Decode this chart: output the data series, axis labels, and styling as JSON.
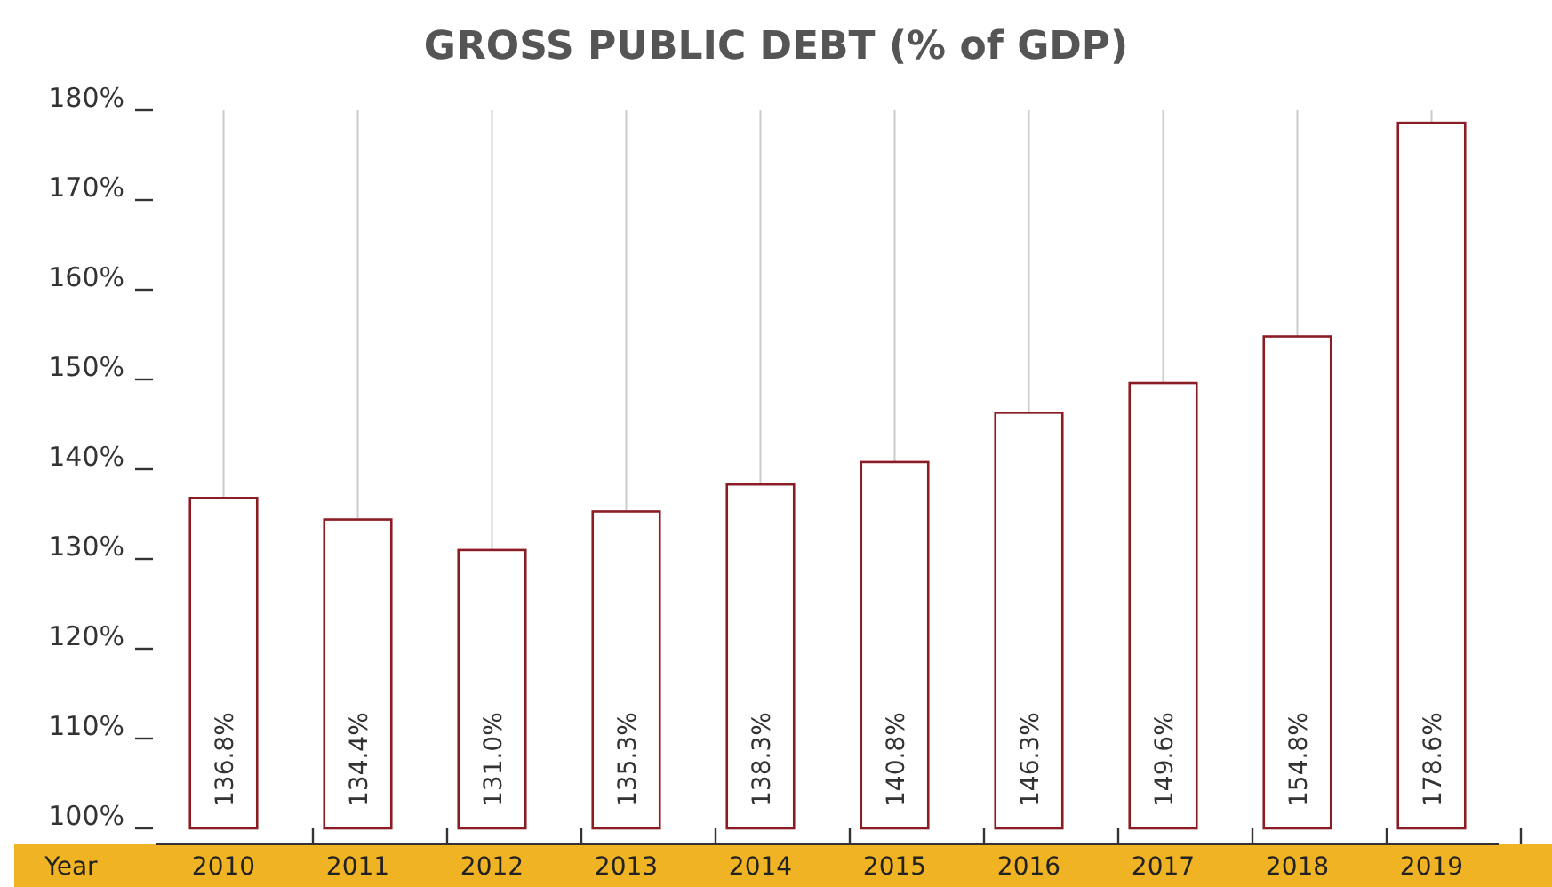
{
  "chart_data": {
    "type": "bar",
    "title": "GROSS PUBLIC DEBT (% of GDP)",
    "xlabel": "Year",
    "categories": [
      "2010",
      "2011",
      "2012",
      "2013",
      "2014",
      "2015",
      "2016",
      "2017",
      "2018",
      "2019"
    ],
    "values": [
      136.8,
      134.4,
      131.0,
      135.3,
      138.3,
      140.8,
      146.3,
      149.6,
      154.8,
      178.6
    ],
    "value_labels": [
      "136.8%",
      "134.4%",
      "131.0%",
      "135.3%",
      "138.3%",
      "140.8%",
      "146.3%",
      "149.6%",
      "154.8%",
      "178.6%"
    ],
    "color": "#8b1c24",
    "ylim": [
      100,
      180
    ],
    "yticks": [
      {
        "value": 100,
        "label": "100%"
      },
      {
        "value": 110,
        "label": "110%"
      },
      {
        "value": 120,
        "label": "120%"
      },
      {
        "value": 130,
        "label": "130%"
      },
      {
        "value": 140,
        "label": "140%"
      },
      {
        "value": 150,
        "label": "150%"
      },
      {
        "value": 160,
        "label": "160%"
      },
      {
        "value": 170,
        "label": "170%"
      },
      {
        "value": 180,
        "label": "180%"
      }
    ],
    "grid": "x"
  }
}
